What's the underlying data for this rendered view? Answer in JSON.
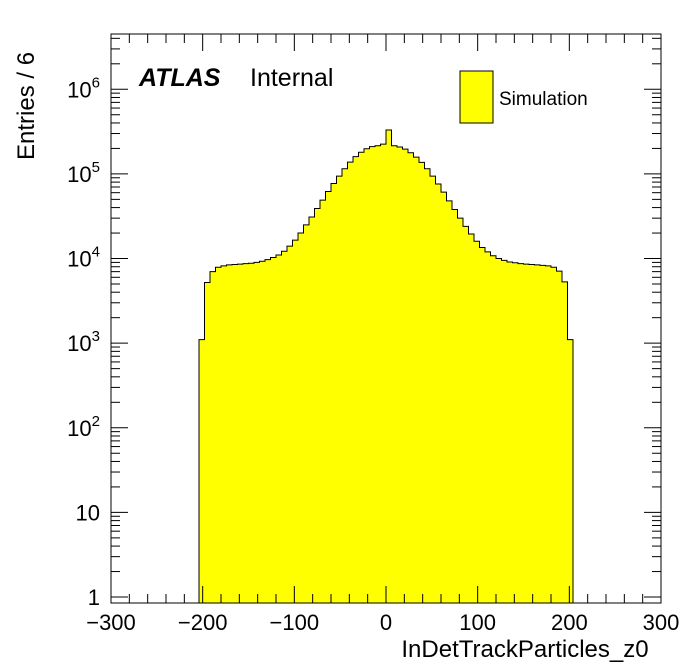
{
  "chart_data": {
    "type": "bar",
    "style": "filled-step-histogram",
    "xlabel": "InDetTrackParticles_z0",
    "ylabel": "Entries / 6",
    "x_range": [
      -300,
      300
    ],
    "y_range": [
      0.85,
      4500000
    ],
    "y_scale": "log",
    "x_ticks": [
      -300,
      -200,
      -100,
      0,
      100,
      200,
      300
    ],
    "x_tick_labels": [
      "−300",
      "−200",
      "−100",
      "0",
      "100",
      "200",
      "300"
    ],
    "y_ticks": [
      {
        "value": 1000000,
        "base": "10",
        "exp": "6"
      },
      {
        "value": 100000,
        "base": "10",
        "exp": "5"
      },
      {
        "value": 10000,
        "base": "10",
        "exp": "4"
      },
      {
        "value": 1000,
        "base": "10",
        "exp": "3"
      },
      {
        "value": 100,
        "base": "10",
        "exp": "2"
      },
      {
        "value": 10,
        "base": "10",
        "exp": ""
      },
      {
        "value": 1,
        "base": "1",
        "exp": ""
      }
    ],
    "fill_color": "#ffff00",
    "line_color": "#000000",
    "bin_width": 6,
    "bin_low_edges": [
      -204,
      -198,
      -192,
      -186,
      -180,
      -174,
      -168,
      -162,
      -156,
      -150,
      -144,
      -138,
      -132,
      -126,
      -120,
      -114,
      -108,
      -102,
      -96,
      -90,
      -84,
      -78,
      -72,
      -66,
      -60,
      -54,
      -48,
      -42,
      -36,
      -30,
      -24,
      -18,
      -12,
      -6,
      0,
      6,
      12,
      18,
      24,
      30,
      36,
      42,
      48,
      54,
      60,
      66,
      72,
      78,
      84,
      90,
      96,
      102,
      108,
      114,
      120,
      126,
      132,
      138,
      144,
      150,
      156,
      162,
      168,
      174,
      180,
      186,
      192,
      198
    ],
    "values": [
      1100,
      5200,
      7000,
      7900,
      8200,
      8400,
      8500,
      8600,
      8700,
      8800,
      9000,
      9300,
      9700,
      10300,
      11000,
      12200,
      14000,
      16500,
      20000,
      25000,
      31000,
      39000,
      49000,
      62000,
      77000,
      94000,
      115000,
      138000,
      160000,
      180000,
      198000,
      210000,
      215000,
      225000,
      330000,
      215000,
      208000,
      196000,
      178000,
      158000,
      137000,
      115000,
      94000,
      76000,
      61000,
      48000,
      38000,
      30000,
      24000,
      19500,
      16000,
      13500,
      12000,
      10800,
      10000,
      9500,
      9100,
      8900,
      8700,
      8600,
      8500,
      8400,
      8300,
      8200,
      7900,
      7100,
      5300,
      1100
    ],
    "legend": [
      {
        "name": "Simulation",
        "color": "#ffff00"
      }
    ],
    "legend_placement": "top-right",
    "annotations": {
      "experiment": "ATLAS",
      "status": "Internal"
    },
    "grid": false
  }
}
